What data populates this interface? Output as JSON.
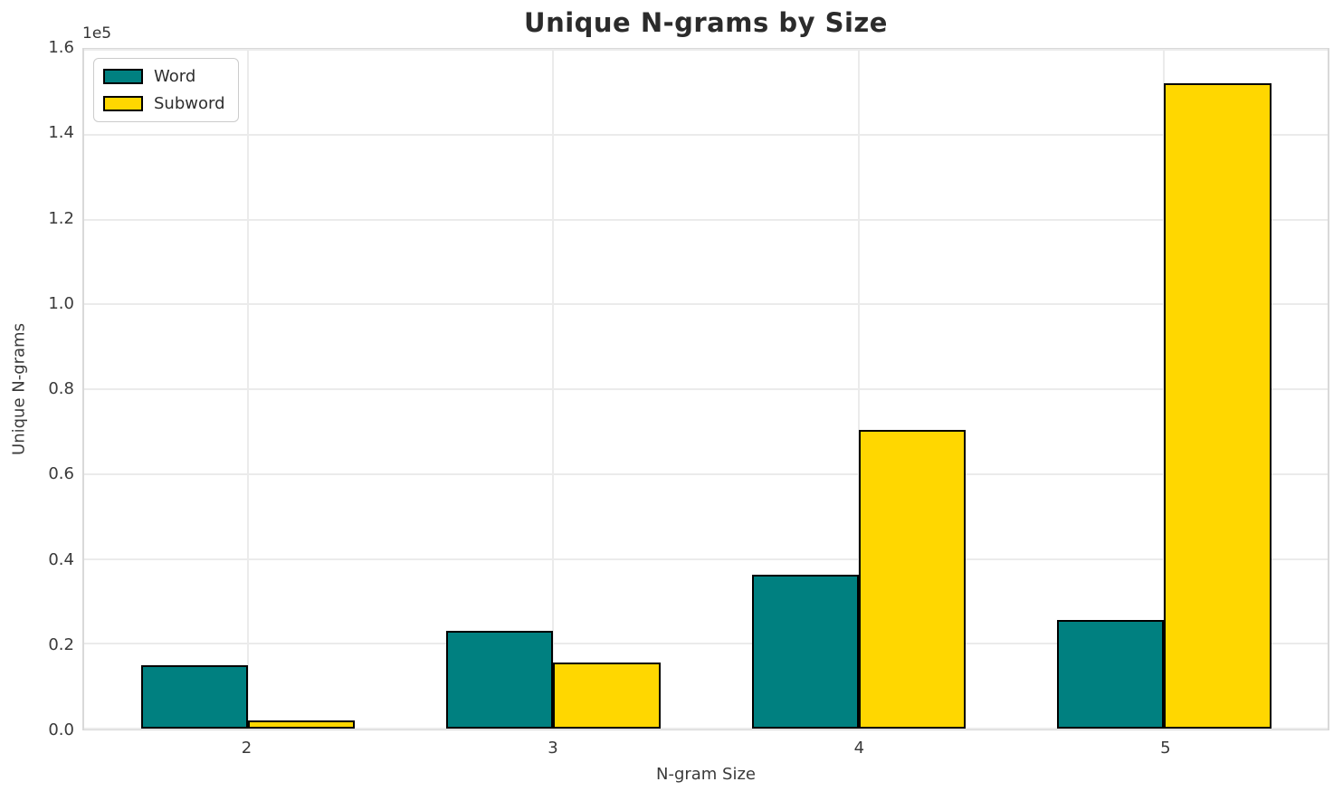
{
  "chart_data": {
    "type": "bar",
    "title": "Unique N-grams by Size",
    "xlabel": "N-gram Size",
    "ylabel": "Unique N-grams",
    "y_offset_text": "1e5",
    "categories": [
      "2",
      "3",
      "4",
      "5"
    ],
    "x": [
      2,
      3,
      4,
      5
    ],
    "series": [
      {
        "name": "Word",
        "color": "#008080",
        "values": [
          15000,
          23100,
          36300,
          25500
        ]
      },
      {
        "name": "Subword",
        "color": "#FFD700",
        "values": [
          2000,
          15500,
          70400,
          152100
        ]
      }
    ],
    "bar_width": 0.35,
    "bar_edge_color": "#000000",
    "xlim": [
      1.464,
      5.535
    ],
    "ylim": [
      0,
      160000
    ],
    "yticks": {
      "values": [
        0,
        20000,
        40000,
        60000,
        80000,
        100000,
        120000,
        140000,
        160000
      ],
      "labels": [
        "0.0",
        "0.2",
        "0.4",
        "0.6",
        "0.8",
        "1.0",
        "1.2",
        "1.4",
        "1.6"
      ]
    },
    "grid": true,
    "grid_color": "#ebebeb",
    "legend_position": "upper-left"
  }
}
